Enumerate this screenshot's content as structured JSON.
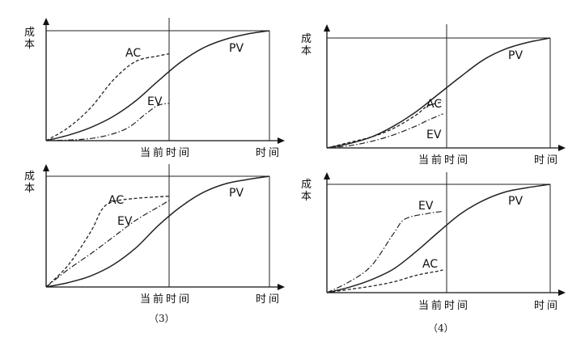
{
  "chart_data": [
    {
      "type": "line",
      "ylabel": "成本",
      "xlabel": "时间",
      "now_label": "当前时间",
      "caption": "",
      "series": [
        {
          "name": "PV",
          "x": [
            0,
            0.1,
            0.2,
            0.3,
            0.4,
            0.5,
            0.6,
            0.7,
            0.8,
            0.9,
            1.0
          ],
          "y": [
            0,
            0.05,
            0.12,
            0.22,
            0.36,
            0.54,
            0.71,
            0.84,
            0.92,
            0.97,
            1.0
          ]
        },
        {
          "name": "AC",
          "x": [
            0,
            0.1,
            0.2,
            0.3,
            0.4,
            0.5,
            0.55
          ],
          "y": [
            0,
            0.12,
            0.3,
            0.55,
            0.72,
            0.77,
            0.79
          ]
        },
        {
          "name": "EV",
          "x": [
            0,
            0.2,
            0.35,
            0.45,
            0.5,
            0.55
          ],
          "y": [
            0,
            0.02,
            0.1,
            0.25,
            0.32,
            0.34
          ]
        }
      ]
    },
    {
      "type": "line",
      "ylabel": "成本",
      "xlabel": "时间",
      "now_label": "当前时间",
      "caption": "",
      "series": [
        {
          "name": "PV",
          "x": [
            0,
            0.1,
            0.2,
            0.3,
            0.4,
            0.5,
            0.6,
            0.7,
            0.8,
            0.9,
            1.0
          ],
          "y": [
            0,
            0.04,
            0.1,
            0.2,
            0.33,
            0.49,
            0.65,
            0.8,
            0.9,
            0.96,
            1.0
          ]
        },
        {
          "name": "AC",
          "x": [
            0,
            0.1,
            0.2,
            0.3,
            0.4,
            0.45,
            0.52
          ],
          "y": [
            0,
            0.05,
            0.1,
            0.18,
            0.3,
            0.38,
            0.42
          ]
        },
        {
          "name": "EV",
          "x": [
            0,
            0.1,
            0.2,
            0.3,
            0.4,
            0.45,
            0.52
          ],
          "y": [
            0,
            0.02,
            0.06,
            0.12,
            0.2,
            0.25,
            0.31
          ]
        }
      ]
    },
    {
      "type": "line",
      "ylabel": "成本",
      "xlabel": "时间",
      "now_label": "当前时间",
      "caption": "（3）",
      "series": [
        {
          "name": "PV",
          "x": [
            0,
            0.1,
            0.2,
            0.3,
            0.4,
            0.5,
            0.6,
            0.7,
            0.8,
            0.9,
            1.0
          ],
          "y": [
            0,
            0.04,
            0.1,
            0.2,
            0.35,
            0.55,
            0.72,
            0.85,
            0.93,
            0.97,
            1.0
          ]
        },
        {
          "name": "AC",
          "x": [
            0,
            0.1,
            0.2,
            0.25,
            0.3,
            0.4,
            0.55
          ],
          "y": [
            0,
            0.2,
            0.5,
            0.7,
            0.77,
            0.8,
            0.82
          ]
        },
        {
          "name": "EV",
          "x": [
            0,
            0.1,
            0.2,
            0.3,
            0.4,
            0.5,
            0.55
          ],
          "y": [
            0,
            0.16,
            0.3,
            0.45,
            0.6,
            0.72,
            0.78
          ]
        }
      ]
    },
    {
      "type": "line",
      "ylabel": "成本",
      "xlabel": "时间",
      "now_label": "当前时间",
      "caption": "（4）",
      "series": [
        {
          "name": "PV",
          "x": [
            0,
            0.1,
            0.2,
            0.3,
            0.4,
            0.5,
            0.6,
            0.7,
            0.8,
            0.9,
            1.0
          ],
          "y": [
            0,
            0.05,
            0.12,
            0.22,
            0.38,
            0.56,
            0.73,
            0.85,
            0.93,
            0.97,
            1.0
          ]
        },
        {
          "name": "EV",
          "x": [
            0,
            0.1,
            0.2,
            0.3,
            0.35,
            0.45,
            0.52
          ],
          "y": [
            0,
            0.1,
            0.25,
            0.55,
            0.68,
            0.73,
            0.75
          ]
        },
        {
          "name": "AC",
          "x": [
            0,
            0.1,
            0.2,
            0.3,
            0.4,
            0.5,
            0.52
          ],
          "y": [
            0,
            0.03,
            0.06,
            0.1,
            0.16,
            0.2,
            0.21
          ]
        }
      ]
    }
  ]
}
